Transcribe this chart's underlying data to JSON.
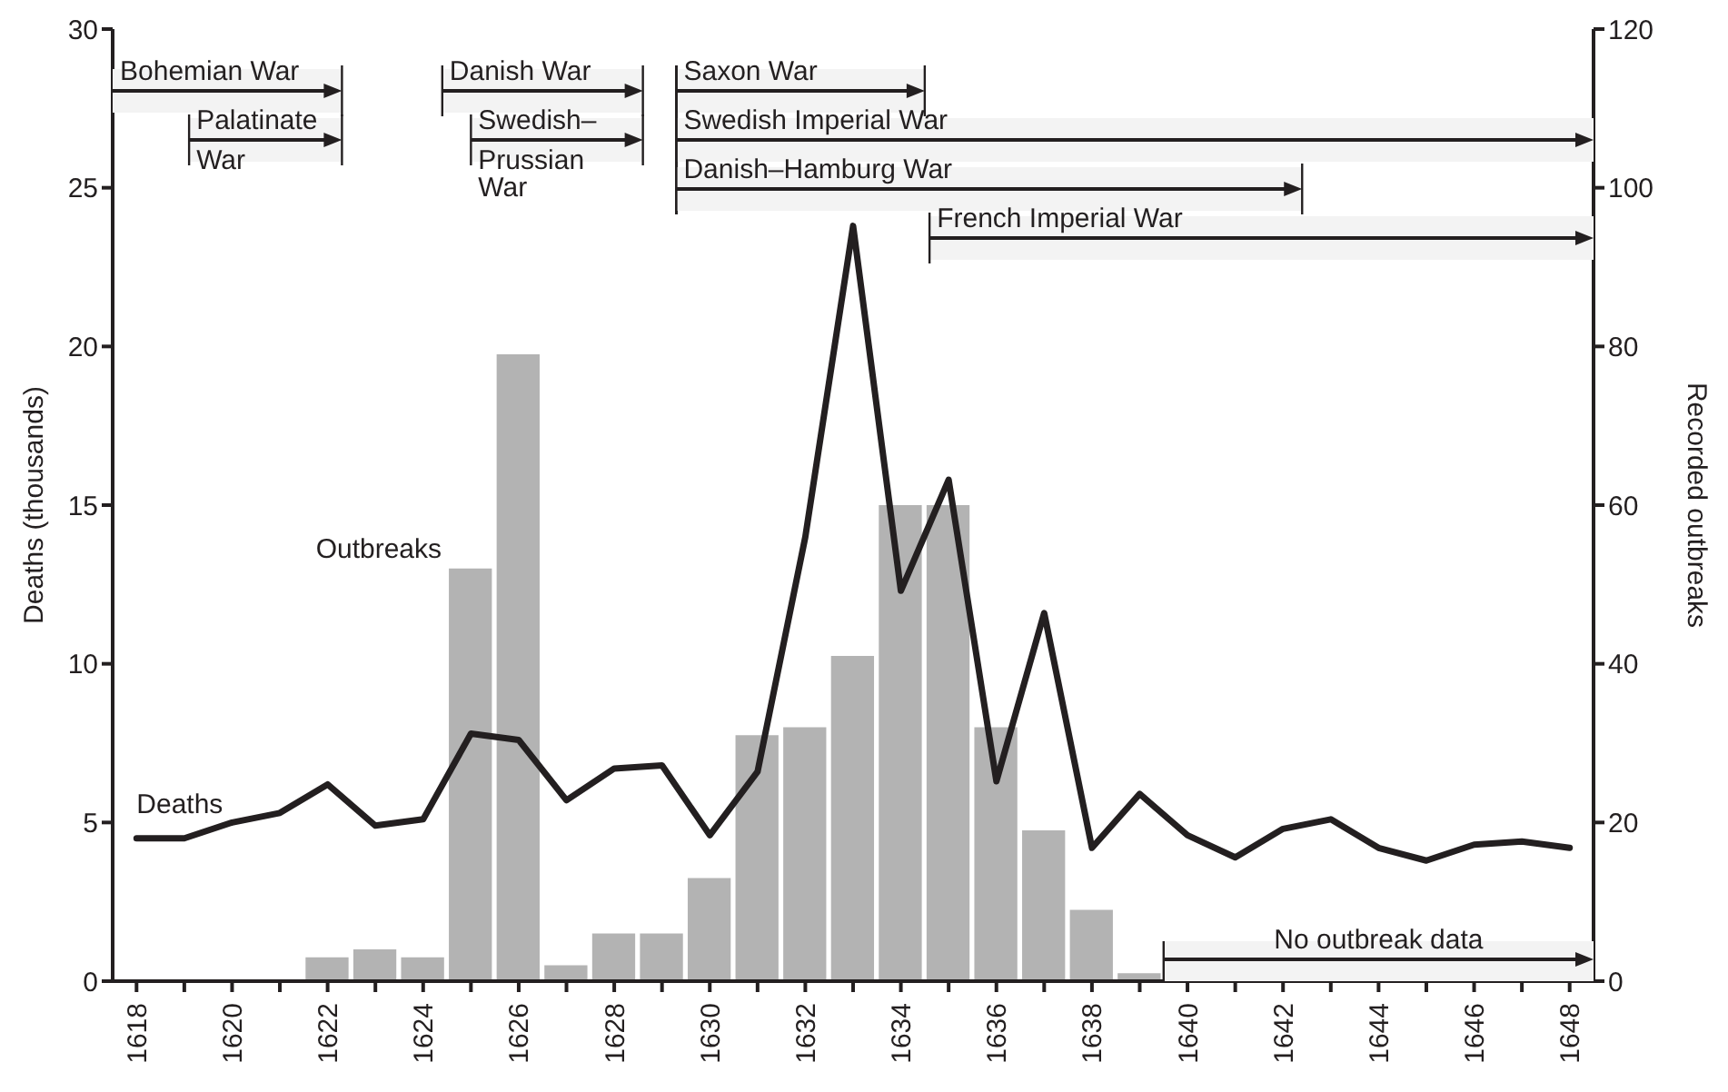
{
  "chart_data": {
    "type": "bar",
    "x": [
      1618,
      1619,
      1620,
      1621,
      1622,
      1623,
      1624,
      1625,
      1626,
      1627,
      1628,
      1629,
      1630,
      1631,
      1632,
      1633,
      1634,
      1635,
      1636,
      1637,
      1638,
      1639,
      1640,
      1641,
      1642,
      1643,
      1644,
      1645,
      1646,
      1647,
      1648
    ],
    "series": [
      {
        "name": "Outbreaks",
        "axis": "y2",
        "color": "#b3b3b3",
        "values": [
          null,
          null,
          null,
          null,
          3,
          4,
          3,
          52,
          79,
          2,
          6,
          6,
          13,
          31,
          32,
          41,
          60,
          60,
          32,
          19,
          9,
          1,
          null,
          null,
          null,
          null,
          null,
          null,
          null,
          null,
          null
        ]
      },
      {
        "name": "Deaths",
        "type": "line",
        "color": "#231f20",
        "values": [
          4.5,
          4.5,
          5.0,
          5.3,
          6.2,
          4.9,
          5.1,
          7.8,
          7.6,
          5.7,
          6.7,
          6.8,
          4.6,
          6.6,
          14.0,
          23.8,
          12.3,
          15.8,
          6.3,
          11.6,
          4.2,
          5.9,
          4.6,
          3.9,
          4.8,
          5.1,
          4.2,
          3.8,
          4.3,
          4.4,
          4.2
        ]
      }
    ],
    "xlim": [
      1617.5,
      1648.5
    ],
    "xticks": [
      1618,
      {
        "value": 1619,
        "label": null
      },
      1620,
      {
        "value": 1621,
        "label": null
      },
      1622,
      {
        "value": 1623,
        "label": null
      },
      1624,
      {
        "value": 1625,
        "label": null
      },
      1626,
      {
        "value": 1627,
        "label": null
      },
      1628,
      {
        "value": 1629,
        "label": null
      },
      1630,
      {
        "value": 1631,
        "label": null
      },
      1632,
      {
        "value": 1633,
        "label": null
      },
      1634,
      {
        "value": 1635,
        "label": null
      },
      1636,
      {
        "value": 1637,
        "label": null
      },
      1638,
      {
        "value": 1639,
        "label": null
      },
      1640,
      {
        "value": 1641,
        "label": null
      },
      1642,
      {
        "value": 1643,
        "label": null
      },
      1644,
      {
        "value": 1645,
        "label": null
      },
      1646,
      {
        "value": 1647,
        "label": null
      },
      1648
    ],
    "ylim": [
      0,
      30
    ],
    "yticks": [
      0,
      5,
      10,
      15,
      20,
      25,
      30
    ],
    "y2lim": [
      0,
      120
    ],
    "y2ticks": [
      0,
      20,
      40,
      60,
      80,
      100,
      120
    ],
    "ylabel": "Deaths (thousands)",
    "y2label": "Recorded outbreaks",
    "bands": [
      {
        "axis": "x",
        "from": 1617.5,
        "to": 1622.3,
        "label": "Bohemian War"
      },
      {
        "axis": "x",
        "from": 1619.1,
        "to": 1622.3,
        "label": "Palatinate War"
      },
      {
        "axis": "x",
        "from": 1624.4,
        "to": 1628.6,
        "label": "Danish War"
      },
      {
        "axis": "x",
        "from": 1625.0,
        "to": 1628.6,
        "label": "Swedish–Prussian War"
      },
      {
        "axis": "x",
        "from": 1629.3,
        "to": 1634.5,
        "label": "Saxon War"
      },
      {
        "axis": "x",
        "from": 1629.3,
        "to": 1648.5,
        "label": "Swedish Imperial War"
      },
      {
        "axis": "x",
        "from": 1629.3,
        "to": 1642.4,
        "label": "Danish–Hamburg War"
      },
      {
        "axis": "x",
        "from": 1634.6,
        "to": 1648.5,
        "label": "French Imperial War"
      },
      {
        "axis": "x",
        "from": 1639.5,
        "to": 1648.5,
        "label": "No outbreak data"
      }
    ]
  }
}
